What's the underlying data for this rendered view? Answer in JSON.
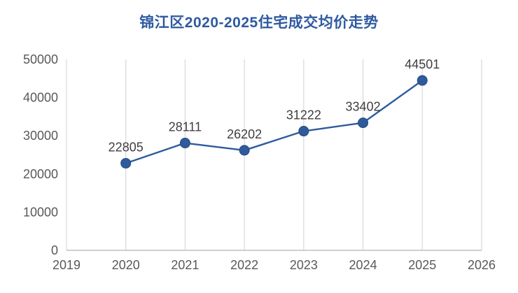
{
  "chart_data": {
    "type": "line",
    "title": "锦江区2020-2025住宅成交均价走势",
    "categories": [
      2020,
      2021,
      2022,
      2023,
      2024,
      2025
    ],
    "values": [
      22805,
      28111,
      26202,
      31222,
      33402,
      44501
    ],
    "xlabel": "",
    "ylabel": "",
    "xlim": [
      2019,
      2026
    ],
    "ylim": [
      0,
      50000
    ],
    "x_ticks": [
      "2019",
      "2020",
      "2021",
      "2022",
      "2023",
      "2024",
      "2025",
      "2026"
    ],
    "y_ticks": [
      "0",
      "10000",
      "20000",
      "30000",
      "40000",
      "50000"
    ],
    "grid": "vertical",
    "legend": "none",
    "colors": {
      "line": "#2f5b9d",
      "marker_fill": "#2f5b9d",
      "marker_edge": "#24487f",
      "grid": "#d9d9d9",
      "axis": "#bfbfbf",
      "tick_text": "#595959",
      "data_label_text": "#3f3f3f",
      "title_text": "#2e5aa0"
    }
  }
}
